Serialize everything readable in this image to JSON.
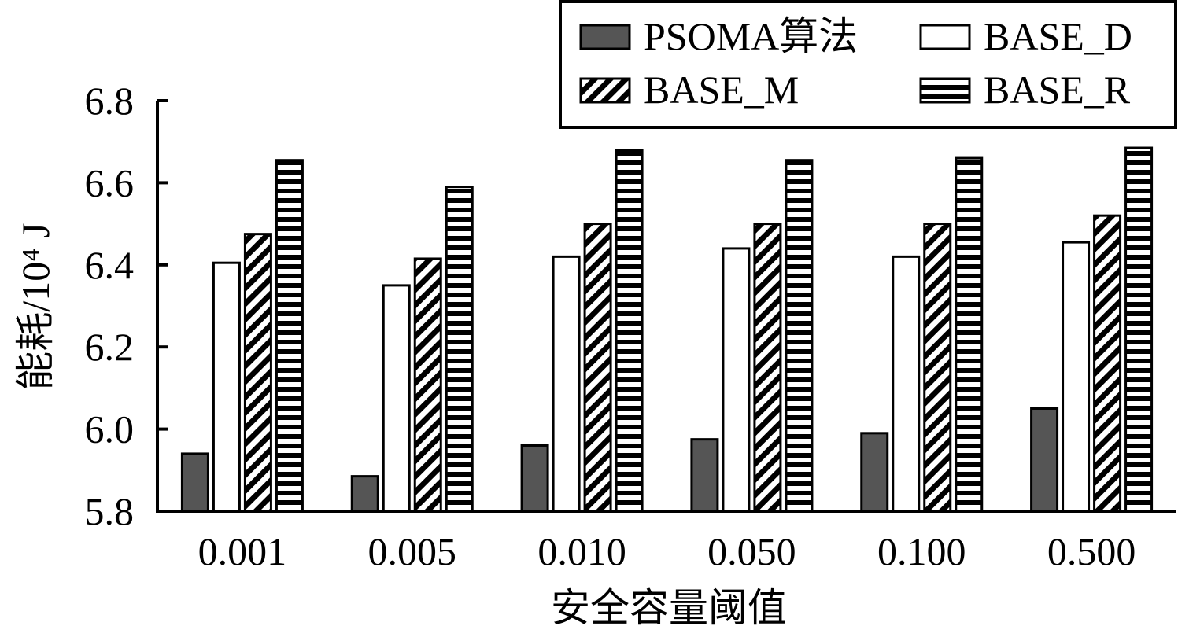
{
  "chart_data": {
    "type": "bar",
    "xlabel": "安全容量阈值",
    "ylabel": "能耗/10⁴ J",
    "categories": [
      "0.001",
      "0.005",
      "0.010",
      "0.050",
      "0.100",
      "0.500"
    ],
    "series": [
      {
        "name": "PSOMA算法",
        "pattern": "solid-dark",
        "values": [
          5.94,
          5.885,
          5.96,
          5.975,
          5.99,
          6.05
        ]
      },
      {
        "name": "BASE_D",
        "pattern": "white",
        "values": [
          6.405,
          6.35,
          6.42,
          6.44,
          6.42,
          6.455
        ]
      },
      {
        "name": "BASE_M",
        "pattern": "diagonal",
        "values": [
          6.475,
          6.415,
          6.5,
          6.5,
          6.5,
          6.52
        ]
      },
      {
        "name": "BASE_R",
        "pattern": "horizontal",
        "values": [
          6.655,
          6.59,
          6.68,
          6.655,
          6.66,
          6.685
        ]
      }
    ],
    "ylim": [
      5.8,
      6.8
    ],
    "yticks": [
      "5.8",
      "6.0",
      "6.2",
      "6.4",
      "6.6",
      "6.8"
    ],
    "legend_position": "top-right",
    "grid": false,
    "colors": {
      "dark_bar": "#555555",
      "outline": "#000000",
      "background": "#ffffff"
    }
  }
}
